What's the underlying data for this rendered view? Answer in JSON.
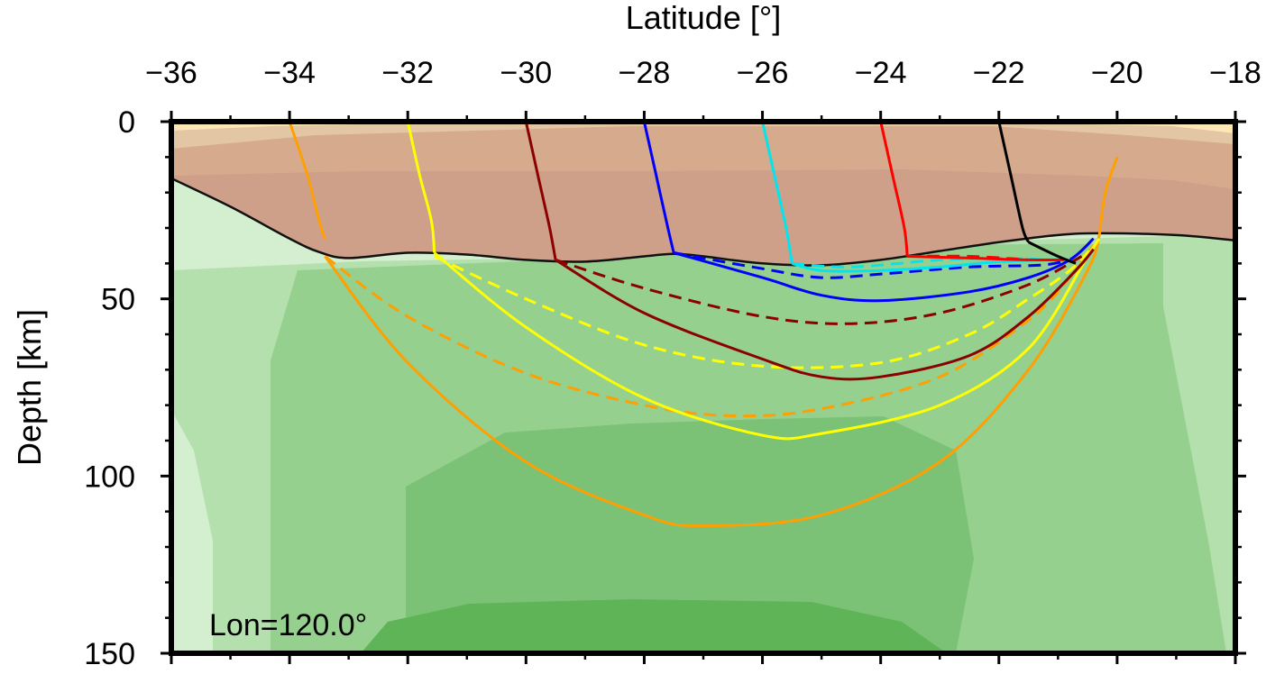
{
  "chart_data": {
    "type": "line",
    "xlabel": "Latitude [°]",
    "ylabel": "Depth [km]",
    "annotation": "Lon=120.0°",
    "xlim": [
      -36,
      -18
    ],
    "ylim": [
      0,
      150
    ],
    "y_inverted": true,
    "x_axis_position": "top",
    "x_ticks": [
      {
        "v": -36,
        "label": "−36"
      },
      {
        "v": -34,
        "label": "−34"
      },
      {
        "v": -32,
        "label": "−32"
      },
      {
        "v": -30,
        "label": "−30"
      },
      {
        "v": -28,
        "label": "−28"
      },
      {
        "v": -26,
        "label": "−26"
      },
      {
        "v": -24,
        "label": "−24"
      },
      {
        "v": -22,
        "label": "−22"
      },
      {
        "v": -20,
        "label": "−20"
      },
      {
        "v": -18,
        "label": "−18"
      }
    ],
    "y_ticks": [
      {
        "v": 0,
        "label": "0"
      },
      {
        "v": 50,
        "label": "50"
      },
      {
        "v": 100,
        "label": "100"
      },
      {
        "v": 150,
        "label": "150"
      }
    ],
    "moho": [
      [
        -36,
        16
      ],
      [
        -35,
        24
      ],
      [
        -34,
        33
      ],
      [
        -33.5,
        36.8
      ],
      [
        -33,
        38.5
      ],
      [
        -32,
        37
      ],
      [
        -31,
        37.5
      ],
      [
        -30,
        39
      ],
      [
        -29,
        39.5
      ],
      [
        -28,
        38
      ],
      [
        -27.5,
        37.3
      ],
      [
        -27,
        38
      ],
      [
        -26,
        40
      ],
      [
        -25,
        40.5
      ],
      [
        -24,
        39
      ],
      [
        -23,
        36.5
      ],
      [
        -22,
        34
      ],
      [
        -21,
        32
      ],
      [
        -20.3,
        31.5
      ],
      [
        -19,
        32
      ],
      [
        -18,
        33.5
      ]
    ],
    "series": [
      {
        "color": "#ff9f00",
        "solid": [
          [
            -34,
            0
          ],
          [
            -33.7,
            15
          ],
          [
            -33.5,
            28
          ],
          [
            -33.4,
            33
          ]
        ],
        "mantle_solid": [
          [
            -33.4,
            38
          ],
          [
            -32,
            68
          ],
          [
            -30,
            96
          ],
          [
            -28,
            111
          ],
          [
            -27,
            114
          ],
          [
            -25,
            111
          ],
          [
            -23,
            96
          ],
          [
            -21.5,
            70
          ],
          [
            -20.5,
            42
          ],
          [
            -20.3,
            32
          ]
        ],
        "dashed": [
          [
            -33.4,
            38
          ],
          [
            -32,
            55
          ],
          [
            -30,
            71
          ],
          [
            -28,
            80
          ],
          [
            -26.5,
            83
          ],
          [
            -25,
            81
          ],
          [
            -23,
            72
          ],
          [
            -21.5,
            56
          ],
          [
            -20.8,
            44
          ],
          [
            -20.4,
            35
          ]
        ],
        "tail": [
          [
            -20.3,
            32
          ],
          [
            -20.2,
            20
          ],
          [
            -20.0,
            10
          ]
        ]
      },
      {
        "color": "#ffff00",
        "solid": [
          [
            -32,
            0
          ],
          [
            -31.8,
            15
          ],
          [
            -31.6,
            28
          ],
          [
            -31.55,
            37
          ]
        ],
        "mantle_solid": [
          [
            -31.55,
            37
          ],
          [
            -30,
            58
          ],
          [
            -28,
            78
          ],
          [
            -26,
            88.5
          ],
          [
            -25,
            88
          ],
          [
            -23,
            80
          ],
          [
            -21.5,
            64
          ],
          [
            -20.5,
            38
          ],
          [
            -20.3,
            33
          ]
        ],
        "dashed": [
          [
            -31.55,
            38
          ],
          [
            -30,
            50
          ],
          [
            -28,
            63
          ],
          [
            -26,
            69
          ],
          [
            -24,
            68
          ],
          [
            -22.5,
            60
          ],
          [
            -21.5,
            50
          ],
          [
            -20.8,
            42
          ],
          [
            -20.4,
            35
          ]
        ]
      },
      {
        "color": "#8b0000",
        "solid": [
          [
            -30,
            0
          ],
          [
            -29.8,
            15
          ],
          [
            -29.6,
            30
          ],
          [
            -29.5,
            39
          ]
        ],
        "mantle_solid": [
          [
            -29.5,
            39
          ],
          [
            -28,
            54
          ],
          [
            -26,
            67
          ],
          [
            -25,
            72
          ],
          [
            -24,
            72
          ],
          [
            -22.5,
            66
          ],
          [
            -21.5,
            55
          ],
          [
            -20.7,
            42
          ],
          [
            -20.4,
            36
          ]
        ],
        "dashed": [
          [
            -29.5,
            39
          ],
          [
            -28,
            47
          ],
          [
            -26,
            55
          ],
          [
            -24.5,
            57
          ],
          [
            -23,
            54
          ],
          [
            -21.5,
            46
          ],
          [
            -20.6,
            38
          ]
        ]
      },
      {
        "color": "#0000ff",
        "solid": [
          [
            -28,
            0
          ],
          [
            -27.8,
            15
          ],
          [
            -27.6,
            30
          ],
          [
            -27.5,
            37
          ]
        ],
        "mantle_solid": [
          [
            -27.5,
            37
          ],
          [
            -26,
            44
          ],
          [
            -25,
            49
          ],
          [
            -24,
            50.5
          ],
          [
            -22.5,
            48
          ],
          [
            -21.5,
            44
          ],
          [
            -20.8,
            39
          ],
          [
            -20.4,
            33
          ]
        ],
        "dashed": [
          [
            -27.5,
            37
          ],
          [
            -26,
            41.5
          ],
          [
            -25,
            44
          ],
          [
            -24,
            43
          ],
          [
            -22.5,
            41
          ],
          [
            -21.3,
            40.5
          ],
          [
            -20.8,
            39
          ]
        ]
      },
      {
        "color": "#00e5ee",
        "solid": [
          [
            -26,
            0
          ],
          [
            -25.8,
            15
          ],
          [
            -25.6,
            30
          ],
          [
            -25.5,
            40
          ]
        ],
        "mantle_solid": [
          [
            -25.5,
            40
          ],
          [
            -25,
            42
          ],
          [
            -24,
            42
          ],
          [
            -23,
            41
          ],
          [
            -22,
            39.5
          ],
          [
            -21.2,
            39
          ],
          [
            -20.8,
            39
          ]
        ],
        "dashed": [
          [
            -25.5,
            40
          ],
          [
            -24.5,
            41
          ],
          [
            -23,
            39
          ],
          [
            -22,
            38.5
          ],
          [
            -21.2,
            39
          ]
        ]
      },
      {
        "color": "#ff0000",
        "solid": [
          [
            -24,
            0
          ],
          [
            -23.8,
            15
          ],
          [
            -23.6,
            30
          ],
          [
            -23.55,
            38
          ]
        ],
        "mantle_solid": [
          [
            -23.55,
            38
          ],
          [
            -22.5,
            38.5
          ],
          [
            -21.5,
            39
          ],
          [
            -20.9,
            39
          ]
        ],
        "dashed": [
          [
            -23.55,
            38
          ],
          [
            -22.5,
            38
          ],
          [
            -21.5,
            39
          ]
        ]
      },
      {
        "color": "#000000",
        "solid": [
          [
            -22,
            0
          ],
          [
            -21.8,
            15
          ],
          [
            -21.6,
            30
          ],
          [
            -21.5,
            34
          ]
        ],
        "mantle_solid": [
          [
            -21.5,
            34
          ],
          [
            -21.0,
            38
          ],
          [
            -20.7,
            40
          ]
        ],
        "dashed": []
      }
    ]
  }
}
